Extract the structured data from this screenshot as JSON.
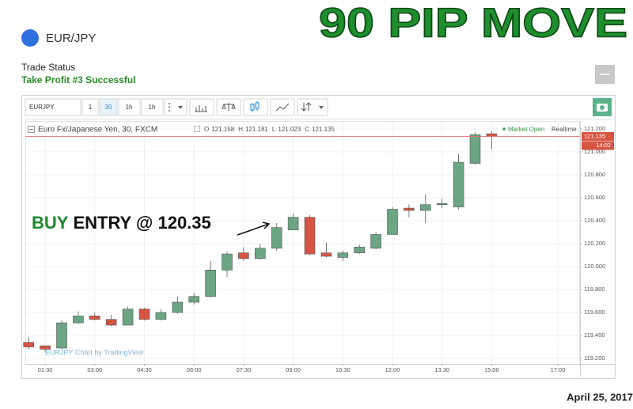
{
  "header": {
    "title": "90 PIP MOVE",
    "symbol": "EUR/JPY",
    "status_label": "Trade Status",
    "status": "Take Profit #3 Successful",
    "date": "April 25, 2017"
  },
  "toolbar": {
    "symbol": "EURJPY",
    "intervals": [
      "1",
      "30",
      "1h",
      "1h"
    ]
  },
  "chart_data": {
    "type": "candlestick",
    "title": "Euro Fx/Japanese Yen, 30, FXCM",
    "legend": [
      {
        "label": "O",
        "value": 121.158
      },
      {
        "label": "H",
        "value": 121.181
      },
      {
        "label": "L",
        "value": 121.023
      },
      {
        "label": "C",
        "value": 121.135
      }
    ],
    "market_status": "Market Open",
    "feed": "Realtime",
    "watermark": "EURJPY Chart by TradingView",
    "annotation": {
      "highlight": "BUY",
      "text": "ENTRY @ 120.35"
    },
    "last_price": 121.135,
    "countdown": "14:02",
    "x": [
      1,
      1.5,
      2,
      2.5,
      3,
      3.5,
      4,
      4.5,
      5,
      5.5,
      6,
      6.5,
      7,
      7.5,
      8,
      8.5,
      9,
      9.5,
      10,
      10.5,
      11,
      11.5,
      12,
      12.5,
      13,
      13.5,
      14,
      14.5,
      15
    ],
    "series": [
      {
        "up_color": "#6ba583",
        "down_color": "#d75442",
        "open": [
          119.34,
          119.31,
          119.29,
          119.51,
          119.57,
          119.54,
          119.49,
          119.63,
          119.54,
          119.6,
          119.69,
          119.74,
          119.97,
          120.12,
          120.07,
          120.16,
          120.32,
          120.43,
          120.12,
          120.08,
          120.12,
          120.16,
          120.28,
          120.51,
          120.49,
          120.54,
          120.52,
          120.9,
          121.158
        ],
        "high": [
          119.39,
          119.31,
          119.53,
          119.61,
          119.6,
          119.58,
          119.65,
          119.64,
          119.63,
          119.74,
          119.77,
          120.05,
          120.13,
          120.17,
          120.2,
          120.38,
          120.46,
          120.45,
          120.21,
          120.14,
          120.19,
          120.3,
          120.52,
          120.54,
          120.63,
          120.59,
          120.98,
          121.17,
          121.181
        ],
        "low": [
          119.28,
          119.26,
          119.28,
          119.5,
          119.53,
          119.48,
          119.49,
          119.53,
          119.53,
          119.59,
          119.67,
          119.73,
          119.91,
          120.05,
          120.06,
          120.14,
          120.32,
          120.1,
          120.08,
          120.05,
          120.11,
          120.15,
          120.28,
          120.43,
          120.38,
          120.51,
          120.5,
          120.89,
          121.023
        ],
        "close": [
          119.3,
          119.28,
          119.51,
          119.57,
          119.54,
          119.49,
          119.63,
          119.54,
          119.6,
          119.69,
          119.74,
          119.97,
          120.11,
          120.07,
          120.16,
          120.34,
          120.43,
          120.11,
          120.09,
          120.12,
          120.17,
          120.28,
          120.5,
          120.49,
          120.54,
          120.55,
          120.91,
          121.15,
          121.135
        ]
      }
    ],
    "xlim": [
      0.9,
      17.67
    ],
    "ylim": [
      119.152,
      121.269
    ],
    "xticks": [
      {
        "value": 1.5,
        "label": "01:30"
      },
      {
        "value": 3,
        "label": "03:00"
      },
      {
        "value": 4.5,
        "label": "04:30"
      },
      {
        "value": 6,
        "label": "06:00"
      },
      {
        "value": 7.5,
        "label": "07:30"
      },
      {
        "value": 9,
        "label": "09:00"
      },
      {
        "value": 10.5,
        "label": "10:30"
      },
      {
        "value": 12,
        "label": "12:00"
      },
      {
        "value": 13.5,
        "label": "13:30"
      },
      {
        "value": 15,
        "label": "15:00"
      },
      {
        "value": 17,
        "label": "17:00"
      }
    ],
    "yticks": [
      {
        "value": 119.2,
        "label": "119.200"
      },
      {
        "value": 119.4,
        "label": "119.400"
      },
      {
        "value": 119.6,
        "label": "119.600"
      },
      {
        "value": 119.8,
        "label": "119.800"
      },
      {
        "value": 120.0,
        "label": "120.000"
      },
      {
        "value": 120.2,
        "label": "120.200"
      },
      {
        "value": 120.4,
        "label": "120.400"
      },
      {
        "value": 120.6,
        "label": "120.600"
      },
      {
        "value": 120.8,
        "label": "120.800"
      },
      {
        "value": 121.0,
        "label": "121.000"
      },
      {
        "value": 121.2,
        "label": "121.200"
      }
    ],
    "grid": true
  }
}
